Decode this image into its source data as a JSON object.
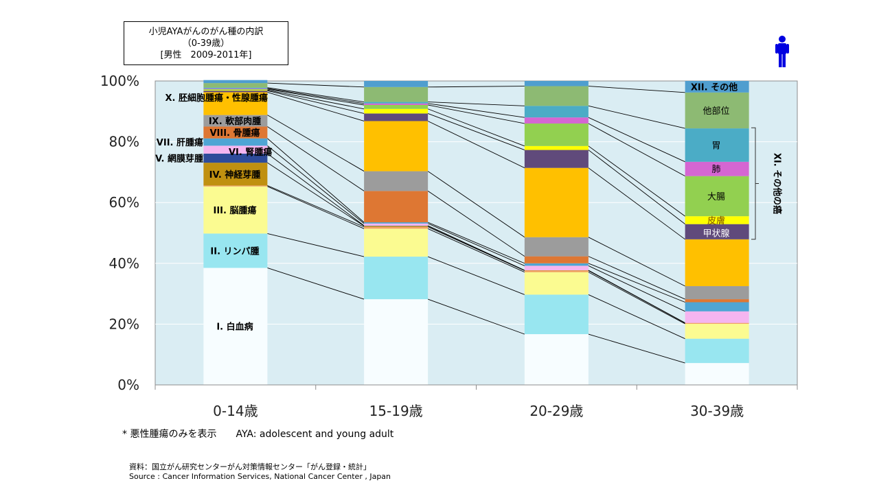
{
  "title_box": {
    "line1": "小児AYAがんのがん種の内訳",
    "line2": "（0-39歳）",
    "line3": "[男性　2009-2011年]"
  },
  "person_icon": "person-male-icon",
  "footnote": "* 悪性腫瘍のみを表示　　AYA: adolescent and young adult",
  "source_jp": "資料：国立がん研究センターがん対策情報センター「がん登録・統計」",
  "source_en": "Source : Cancer Information Services, National Cancer Center , Japan",
  "chart_data": {
    "type": "bar",
    "stacked": true,
    "normalized": true,
    "categories": [
      "0-14歳",
      "15-19歳",
      "20-29歳",
      "30-39歳"
    ],
    "yticks": [
      "0%",
      "20%",
      "40%",
      "60%",
      "80%",
      "100%"
    ],
    "ylim": [
      0,
      100
    ],
    "plot_background": "#daedf3",
    "series": [
      {
        "name": "I. 白血病",
        "color": "#f7fdff",
        "values": [
          38.5,
          28.2,
          16.7,
          7.2
        ]
      },
      {
        "name": "II. リンパ腫",
        "color": "#98e6f0",
        "values": [
          11.3,
          14.0,
          13.0,
          8.0
        ]
      },
      {
        "name": "III. 脳腫瘍",
        "color": "#fbfb91",
        "values": [
          15.5,
          9.2,
          7.4,
          4.9
        ]
      },
      {
        "name": "",
        "color": "#f3a062",
        "values": [
          0.3,
          0.6,
          0.5,
          0.3
        ]
      },
      {
        "name": "IV. 神経芽腫",
        "color": "#c09010",
        "values": [
          7.5,
          0.3,
          0.1,
          0.0
        ]
      },
      {
        "name": "V. 網膜芽腫",
        "color": "#2e4b9a",
        "values": [
          3.0,
          0.1,
          0.0,
          0.0
        ]
      },
      {
        "name": "VI. 腎腫瘍",
        "color": "#f5b5f0",
        "values": [
          2.6,
          0.7,
          1.5,
          3.8
        ]
      },
      {
        "name": "VII. 肝腫瘍",
        "color": "#4fa5d4",
        "values": [
          2.4,
          0.4,
          0.8,
          3.0
        ]
      },
      {
        "name": "VIII. 骨腫瘍",
        "color": "#de7733",
        "values": [
          3.9,
          10.3,
          2.3,
          1.0
        ]
      },
      {
        "name": "IX. 軟部肉腫",
        "color": "#9c9c9c",
        "values": [
          3.8,
          6.5,
          6.3,
          4.3
        ]
      },
      {
        "name": "X. 胚細胞腫瘍・性腺腫瘍",
        "color": "#ffc000",
        "values": [
          7.5,
          16.5,
          22.8,
          15.4
        ]
      },
      {
        "name": "甲状腺",
        "color": "#604a7b",
        "values": [
          0.5,
          2.5,
          5.9,
          5.0
        ]
      },
      {
        "name": "皮膚",
        "color": "#ffff00",
        "values": [
          0.2,
          1.5,
          1.3,
          2.6
        ]
      },
      {
        "name": "大腸",
        "color": "#92d050",
        "values": [
          0.3,
          1.3,
          7.4,
          13.2
        ]
      },
      {
        "name": "肺",
        "color": "#d566d2",
        "values": [
          0.2,
          0.5,
          2.0,
          4.7
        ]
      },
      {
        "name": "胃",
        "color": "#4bacc6",
        "values": [
          0.3,
          0.5,
          3.8,
          11.0
        ]
      },
      {
        "name": "他部位",
        "color": "#8dba73",
        "values": [
          1.5,
          4.9,
          6.5,
          11.8
        ]
      },
      {
        "name": "XII. その他",
        "color": "#4f9ecf",
        "values": [
          1.0,
          2.0,
          1.7,
          3.8
        ]
      }
    ],
    "bracket_label": "XI. その他の癌"
  }
}
